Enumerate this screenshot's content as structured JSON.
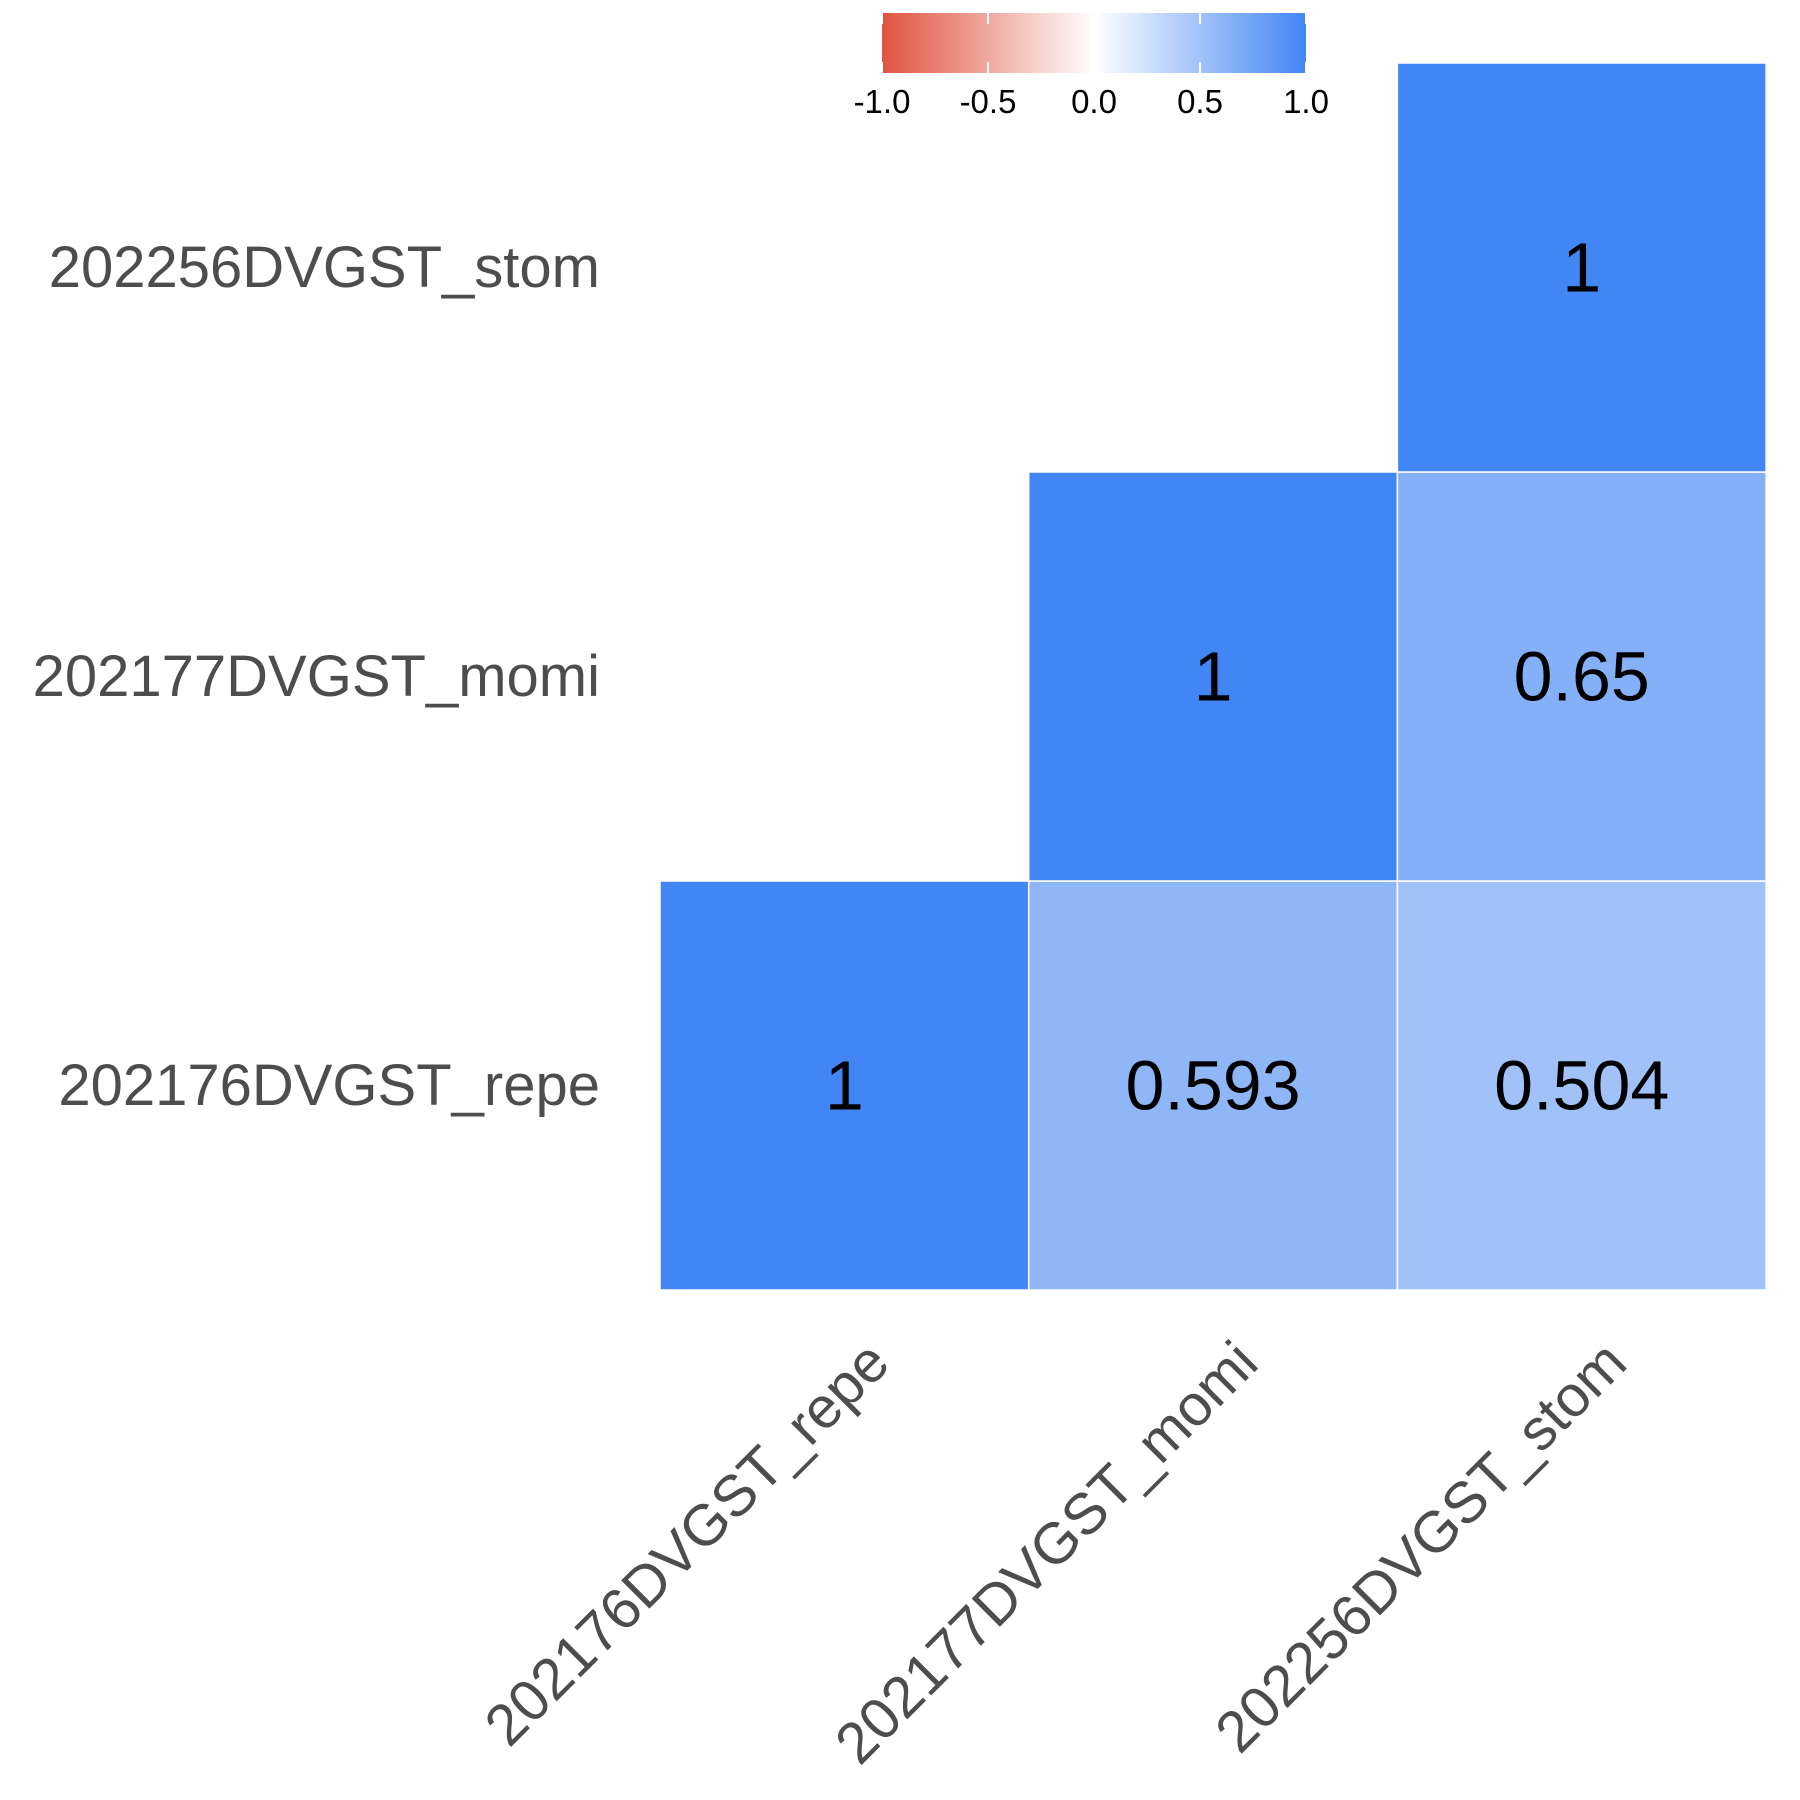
{
  "chart_data": {
    "type": "heatmap",
    "subtype": "correlation-lower-triangle",
    "x_labels": [
      "202176DVGST_repe",
      "202177DVGST_momi",
      "202256DVGST_stom"
    ],
    "y_labels": [
      "202176DVGST_repe",
      "202177DVGST_momi",
      "202256DVGST_stom"
    ],
    "cells": [
      {
        "x": "202176DVGST_repe",
        "y": "202176DVGST_repe",
        "value": 1,
        "label": "1"
      },
      {
        "x": "202177DVGST_momi",
        "y": "202176DVGST_repe",
        "value": 0.593,
        "label": "0.593"
      },
      {
        "x": "202256DVGST_stom",
        "y": "202176DVGST_repe",
        "value": 0.504,
        "label": "0.504"
      },
      {
        "x": "202177DVGST_momi",
        "y": "202177DVGST_momi",
        "value": 1,
        "label": "1"
      },
      {
        "x": "202256DVGST_stom",
        "y": "202177DVGST_momi",
        "value": 0.65,
        "label": "0.65"
      },
      {
        "x": "202256DVGST_stom",
        "y": "202256DVGST_stom",
        "value": 1,
        "label": "1"
      }
    ],
    "color_scale": {
      "min": -1,
      "mid": 0,
      "max": 1,
      "low_color": "#E0533F",
      "mid_color": "#FFFFFF",
      "high_color": "#4285F4"
    },
    "legend": {
      "position": "top",
      "ticks": [
        -1.0,
        -0.5,
        0.0,
        0.5,
        1.0
      ],
      "tick_labels": [
        "-1.0",
        "-0.5",
        "0.0",
        "0.5",
        "1.0"
      ]
    },
    "title": "",
    "xlabel": "",
    "ylabel": "",
    "grid": false
  }
}
